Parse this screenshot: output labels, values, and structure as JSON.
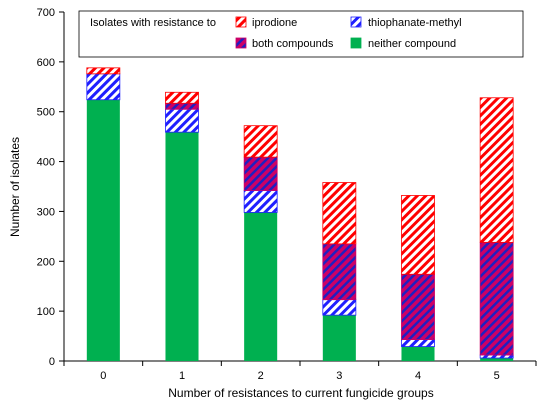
{
  "chart_data": {
    "type": "bar",
    "stacked": true,
    "categories": [
      "0",
      "1",
      "2",
      "3",
      "4",
      "5"
    ],
    "series": [
      {
        "name": "neither compound",
        "key": "neither",
        "color": "#00B050",
        "pattern": "solid",
        "values": [
          524,
          459,
          298,
          92,
          29,
          6
        ]
      },
      {
        "name": "thiophanate-methyl",
        "key": "thio",
        "color": "#1F1FFF",
        "pattern": "hatch-blue",
        "values": [
          52,
          46,
          44,
          31,
          14,
          6
        ]
      },
      {
        "name": "both compounds",
        "key": "both",
        "color": "#CC0066",
        "pattern": "hatch-crossed",
        "values": [
          0,
          12,
          67,
          112,
          131,
          226
        ]
      },
      {
        "name": "iprodione",
        "key": "iprodione",
        "color": "#FF0000",
        "pattern": "hatch-red",
        "values": [
          12,
          22,
          63,
          123,
          158,
          290
        ]
      }
    ],
    "xlabel": "Number  of resistances to current fungicide groups",
    "ylabel": "Number of isolates",
    "ylim": [
      0,
      700
    ],
    "yticks": [
      "0",
      "100",
      "200",
      "300",
      "400",
      "500",
      "600",
      "700"
    ],
    "grid": false,
    "legend": {
      "title": "Isolates with resistance to",
      "placement": "top",
      "order": [
        "iprodione",
        "thiophanate-methyl",
        "both compounds",
        "neither compound"
      ]
    }
  }
}
